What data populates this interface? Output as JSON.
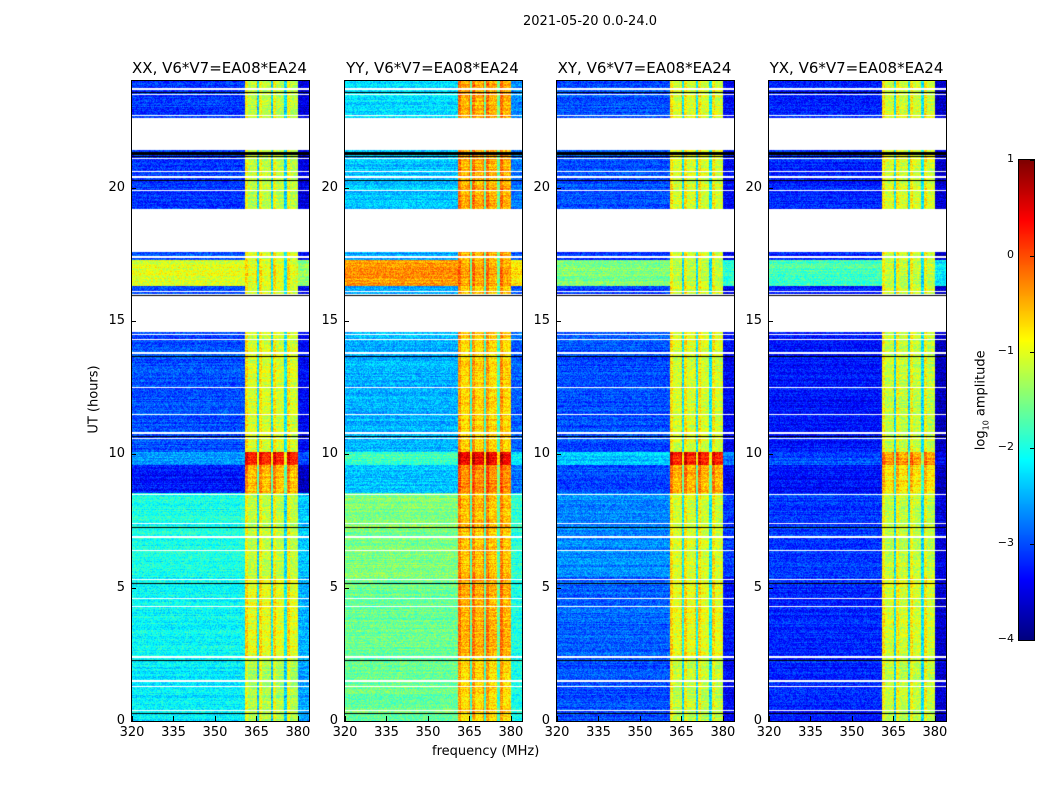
{
  "chart_data": {
    "type": "heatmap",
    "suptitle": "2021-05-20 0.0-24.0",
    "xlabel": "frequency (MHz)",
    "ylabel": "UT (hours)",
    "xlim": [
      320,
      384
    ],
    "ylim": [
      0,
      24
    ],
    "xticks": [
      "320",
      "335",
      "350",
      "365",
      "380"
    ],
    "xtick_values": [
      320,
      335,
      350,
      365,
      380
    ],
    "yticks": [
      "0",
      "5",
      "10",
      "15",
      "20"
    ],
    "ytick_values": [
      0,
      5,
      10,
      15,
      20
    ],
    "colorbar": {
      "label_main": "log",
      "label_sub": "10",
      "label_rest": " amplitude",
      "clim": [
        -4,
        1
      ],
      "ticks": [
        "1",
        "0",
        "−1",
        "−2",
        "−3",
        "−4"
      ],
      "tick_values": [
        1,
        0,
        -1,
        -2,
        -3,
        -4
      ],
      "colormap": "jet"
    },
    "rfi_band_mhz": [
      361,
      380
    ],
    "rfi_dark_channels_mhz": [
      365.5,
      370.5,
      375.5
    ],
    "blank_hours": [
      [
        14.6,
        16.0
      ],
      [
        17.6,
        19.2
      ],
      [
        21.4,
        22.6
      ]
    ],
    "flag_line_hours": [
      0.4,
      1.3,
      1.5,
      2.4,
      4.3,
      4.6,
      5.3,
      6.4,
      6.9,
      7.4,
      8.5,
      10.6,
      10.8,
      11.5,
      12.5,
      13.8,
      14.3,
      14.5,
      16.1,
      17.4,
      19.9,
      20.4,
      20.6,
      21.1,
      21.3,
      22.7,
      23.5,
      23.7
    ],
    "time_blocks": [
      {
        "hours": [
          0,
          2.45
        ],
        "levels": {
          "XX": -2.2,
          "YY": -1.6,
          "XY": -3.0,
          "YX": -3.2
        },
        "band": {
          "XX": -1.2,
          "YY": -0.6,
          "XY": -1.1,
          "YX": -1.1
        }
      },
      {
        "hours": [
          2.45,
          5.4
        ],
        "levels": {
          "XX": -2.1,
          "YY": -1.6,
          "XY": -2.9,
          "YX": -3.2
        },
        "band": {
          "XX": -0.9,
          "YY": -0.4,
          "XY": -0.9,
          "YX": -1.0
        }
      },
      {
        "hours": [
          5.4,
          8.55
        ],
        "levels": {
          "XX": -2.0,
          "YY": -1.5,
          "XY": -2.7,
          "YX": -3.1
        },
        "band": {
          "XX": -1.1,
          "YY": -0.5,
          "XY": -1.0,
          "YX": -1.1
        }
      },
      {
        "hours": [
          8.55,
          9.6
        ],
        "levels": {
          "XX": -3.3,
          "YY": -2.4,
          "XY": -3.0,
          "YX": -3.3
        },
        "band": {
          "XX": -0.5,
          "YY": -0.2,
          "XY": -0.4,
          "YX": -0.7
        }
      },
      {
        "hours": [
          9.6,
          10.1
        ],
        "levels": {
          "XX": -2.6,
          "YY": -1.8,
          "XY": -2.4,
          "YX": -3.0
        },
        "band": {
          "XX": 0.3,
          "YY": 0.5,
          "XY": 0.3,
          "YX": -0.3
        }
      },
      {
        "hours": [
          10.1,
          14.6
        ],
        "levels": {
          "XX": -3.0,
          "YY": -2.5,
          "XY": -3.0,
          "YX": -3.3
        },
        "band": {
          "XX": -1.0,
          "YY": -0.6,
          "XY": -1.0,
          "YX": -1.1
        }
      },
      {
        "hours": [
          16.0,
          16.3
        ],
        "levels": {
          "XX": -3.0,
          "YY": -2.6,
          "XY": -3.1,
          "YX": -3.2
        },
        "band": {
          "XX": -1.0,
          "YY": -0.6,
          "XY": -1.0,
          "YX": -1.0
        }
      },
      {
        "hours": [
          16.3,
          17.3
        ],
        "levels": {
          "XX": -1.0,
          "YY": -0.4,
          "XY": -1.5,
          "YX": -1.8
        },
        "band": {
          "XX": -0.9,
          "YY": -0.4,
          "XY": -1.1,
          "YX": -1.1
        }
      },
      {
        "hours": [
          17.3,
          17.6
        ],
        "levels": {
          "XX": -3.0,
          "YY": -2.6,
          "XY": -3.1,
          "YX": -3.2
        },
        "band": {
          "XX": -1.0,
          "YY": -0.5,
          "XY": -1.0,
          "YX": -1.0
        }
      },
      {
        "hours": [
          19.2,
          21.4
        ],
        "levels": {
          "XX": -3.1,
          "YY": -2.4,
          "XY": -3.0,
          "YX": -3.2
        },
        "band": {
          "XX": -1.1,
          "YY": -0.4,
          "XY": -1.0,
          "YX": -1.0
        }
      },
      {
        "hours": [
          22.6,
          24
        ],
        "levels": {
          "XX": -3.1,
          "YY": -2.3,
          "XY": -3.0,
          "YX": -3.2
        },
        "band": {
          "XX": -1.1,
          "YY": -0.4,
          "XY": -1.0,
          "YX": -1.0
        }
      }
    ],
    "panels": [
      {
        "pol": "XX",
        "title": "XX, V6*V7=EA08*EA24"
      },
      {
        "pol": "YY",
        "title": "YY, V6*V7=EA08*EA24"
      },
      {
        "pol": "XY",
        "title": "XY, V6*V7=EA08*EA24"
      },
      {
        "pol": "YX",
        "title": "YX, V6*V7=EA08*EA24"
      }
    ]
  }
}
